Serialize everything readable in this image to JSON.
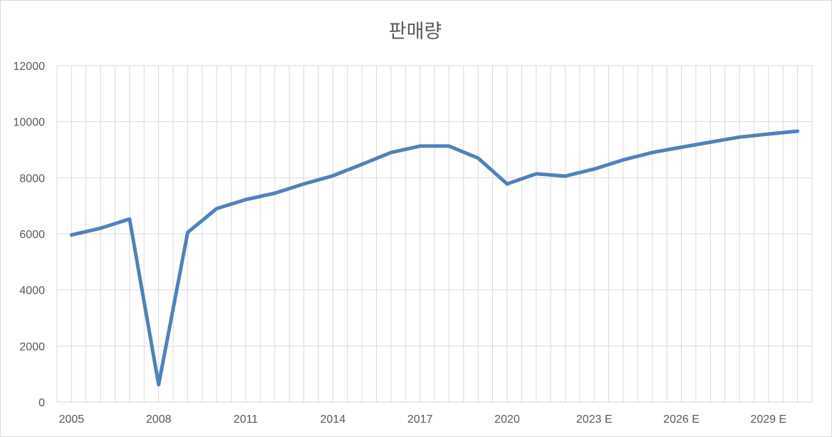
{
  "chart_data": {
    "type": "line",
    "title": "판매량",
    "xlabel": "",
    "ylabel": "",
    "categories": [
      "2005",
      "2006",
      "2007",
      "2008",
      "2009",
      "2010",
      "2011",
      "2012",
      "2013",
      "2014",
      "2015",
      "2016",
      "2017",
      "2018",
      "2019",
      "2020",
      "2021",
      "2022",
      "2023 E",
      "2024 E",
      "2025 E",
      "2026 E",
      "2027 E",
      "2028 E",
      "2029 E",
      "2030 E"
    ],
    "x_tick_labels_shown": [
      "2005",
      "2008",
      "2011",
      "2014",
      "2017",
      "2020",
      "2023 E",
      "2026 E",
      "2029 E"
    ],
    "series": [
      {
        "values": [
          5960,
          6200,
          6530,
          620,
          6050,
          6900,
          7220,
          7450,
          7780,
          8070,
          8480,
          8900,
          9130,
          9130,
          8700,
          7780,
          8140,
          8060,
          8310,
          8640,
          8900,
          9090,
          9270,
          9450,
          9560,
          9660
        ]
      }
    ],
    "ylim": [
      0,
      12000
    ],
    "y_ticks": [
      0,
      2000,
      4000,
      6000,
      8000,
      10000,
      12000
    ],
    "grid": {
      "horizontal": true,
      "vertical": true
    },
    "legend": "none",
    "colors": {
      "line": "#4f81bd",
      "grid": "#d9d9d9",
      "text": "#595959"
    }
  }
}
